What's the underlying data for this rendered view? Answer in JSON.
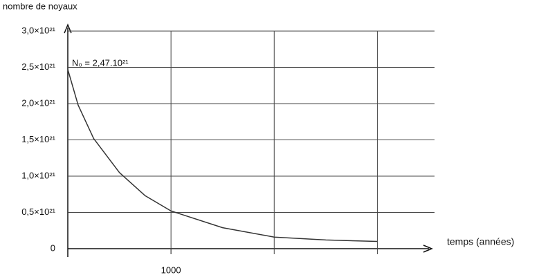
{
  "chart_data": {
    "type": "line",
    "y_axis_label": "nombre de noyaux",
    "x_axis_label": "temps (années)",
    "annotation": "N₀ = 2,47.10²¹",
    "x": [
      0,
      100,
      250,
      500,
      750,
      1000,
      1500,
      2000,
      2500,
      3000
    ],
    "series": [
      {
        "color": "#333333",
        "values": [
          2.47e+21,
          1.98e+21,
          1.52e+21,
          1.05e+21,
          7.3e+20,
          5.2e+20,
          2.9e+20,
          1.6e+20,
          1.2e+20,
          1e+20
        ]
      }
    ],
    "xlim": [
      0,
      3500
    ],
    "ylim": [
      0,
      3e+21
    ],
    "xticks": [
      1000
    ],
    "xgrid": [
      1000,
      2000,
      3000
    ],
    "yticks": [
      0,
      {
        "value": 5e+20,
        "label": "0,5×10²¹"
      },
      {
        "value": 1e+21,
        "label": "1,0×10²¹"
      },
      {
        "value": 1.5e+21,
        "label": "1,5×10²¹"
      },
      {
        "value": 2e+21,
        "label": "2,0×10²¹"
      },
      {
        "value": 2.5e+21,
        "label": "2,5×10²¹"
      },
      {
        "value": 3e+21,
        "label": "3,0×10²¹"
      }
    ],
    "grid": true
  }
}
